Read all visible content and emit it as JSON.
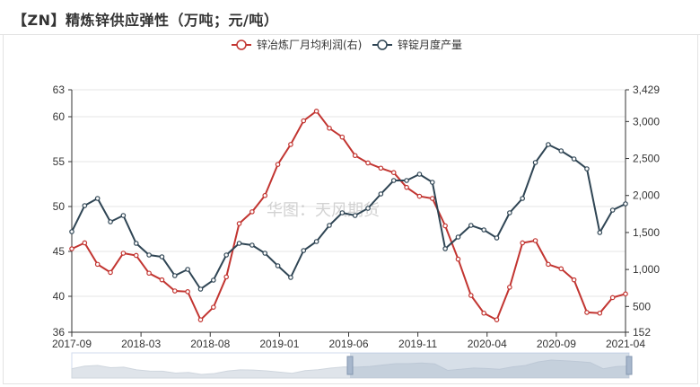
{
  "title": "【ZN】精炼锌供应弹性（万吨；元/吨）",
  "watermark": "华图：天风期货",
  "colors": {
    "profit": "#c23531",
    "output": "#2f4554",
    "grid": "#e6e6e6",
    "axis": "#333333"
  },
  "chart_data": {
    "type": "line",
    "x_tick_labels": [
      "2017-09",
      "2018-03",
      "2018-08",
      "2019-01",
      "2019-06",
      "2019-11",
      "2020-04",
      "2020-09",
      "2021-04"
    ],
    "left_axis": {
      "min": 36,
      "max": 63,
      "ticks": [
        36,
        40,
        45,
        50,
        55,
        60,
        63
      ]
    },
    "right_axis": {
      "min": 152,
      "max": 3429,
      "tick_labels": [
        "152",
        "500",
        "1,000",
        "1,500",
        "2,000",
        "2,500",
        "3,000",
        "3,429"
      ]
    },
    "series": [
      {
        "name": "锌冶炼厂月均利润(右)",
        "axis": "right",
        "values": [
          1280,
          1360,
          1070,
          960,
          1220,
          1190,
          950,
          860,
          710,
          700,
          320,
          490,
          900,
          1620,
          1780,
          2000,
          2420,
          2690,
          3010,
          3140,
          2910,
          2790,
          2540,
          2440,
          2370,
          2310,
          2110,
          1990,
          1960,
          1590,
          1140,
          650,
          410,
          320,
          760,
          1360,
          1390,
          1070,
          1010,
          860,
          420,
          410,
          620,
          670
        ]
      },
      {
        "name": "锌锭月度产量",
        "axis": "left",
        "values": [
          47.2,
          50.1,
          50.9,
          48.3,
          49.0,
          45.9,
          44.6,
          44.4,
          42.3,
          43.0,
          40.8,
          41.8,
          44.6,
          45.9,
          45.7,
          44.8,
          43.4,
          42.1,
          45.1,
          46.1,
          47.9,
          49.3,
          49.0,
          49.8,
          51.4,
          52.9,
          52.9,
          53.6,
          52.7,
          45.3,
          46.6,
          47.9,
          47.4,
          46.5,
          49.3,
          50.9,
          54.9,
          56.9,
          56.2,
          55.3,
          54.2,
          47.1,
          49.6,
          50.3
        ]
      }
    ]
  }
}
